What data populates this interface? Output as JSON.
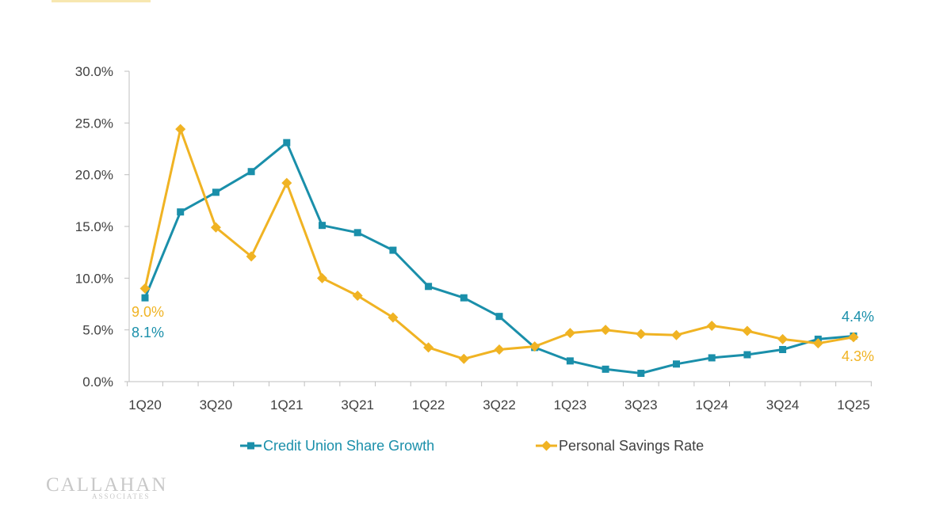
{
  "chart_data": {
    "type": "line",
    "x": [
      "1Q20",
      "2Q20",
      "3Q20",
      "4Q20",
      "1Q21",
      "2Q21",
      "3Q21",
      "4Q21",
      "1Q22",
      "2Q22",
      "3Q22",
      "4Q22",
      "1Q23",
      "2Q23",
      "3Q23",
      "4Q23",
      "1Q24",
      "2Q24",
      "3Q24",
      "4Q24",
      "1Q25"
    ],
    "x_tick_labels": [
      "1Q20",
      "3Q20",
      "1Q21",
      "3Q21",
      "1Q22",
      "3Q22",
      "1Q23",
      "3Q23",
      "1Q24",
      "3Q24",
      "1Q25"
    ],
    "y_tick_labels": [
      "0.0%",
      "5.0%",
      "10.0%",
      "15.0%",
      "20.0%",
      "25.0%",
      "30.0%"
    ],
    "ylim": [
      0,
      30
    ],
    "xlabel": "",
    "ylabel": "",
    "grid": false,
    "legend_position": "bottom",
    "series": [
      {
        "name": "Credit Union Share Growth",
        "color": "#1a8faa",
        "marker": "square",
        "values": [
          8.1,
          16.4,
          18.3,
          20.3,
          23.1,
          15.1,
          14.4,
          12.7,
          9.2,
          8.1,
          6.3,
          3.3,
          2.0,
          1.2,
          0.8,
          1.7,
          2.3,
          2.6,
          3.1,
          4.1,
          4.4
        ],
        "start_label": "8.1%",
        "end_label": "4.4%"
      },
      {
        "name": "Personal Savings Rate",
        "color": "#f0b323",
        "marker": "diamond",
        "values": [
          9.0,
          24.4,
          14.9,
          12.1,
          19.2,
          10.0,
          8.3,
          6.2,
          3.3,
          2.2,
          3.1,
          3.4,
          4.7,
          5.0,
          4.6,
          4.5,
          5.4,
          4.9,
          4.1,
          3.7,
          4.3
        ],
        "start_label": "9.0%",
        "end_label": "4.3%"
      }
    ]
  },
  "logo": {
    "main": "CALLAHAN",
    "sub": "ASSOCIATES"
  }
}
